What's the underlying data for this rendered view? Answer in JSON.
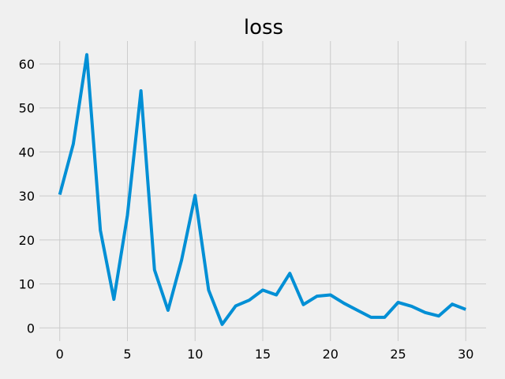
{
  "chart_data": {
    "type": "line",
    "title": "loss",
    "xlabel": "",
    "ylabel": "",
    "xlim": [
      -1.5,
      31.5
    ],
    "ylim": [
      -3.0,
      65.2
    ],
    "xticks": [
      0,
      5,
      10,
      15,
      20,
      25,
      30
    ],
    "yticks": [
      0,
      10,
      20,
      30,
      40,
      50,
      60
    ],
    "grid": true,
    "legend": "none",
    "series": [
      {
        "name": "loss",
        "color": "#008fd5",
        "x": [
          0,
          1,
          2,
          3,
          4,
          5,
          6,
          7,
          8,
          9,
          10,
          11,
          12,
          13,
          14,
          15,
          16,
          17,
          18,
          19,
          20,
          21,
          22,
          23,
          24,
          25,
          26,
          27,
          28,
          29,
          30
        ],
        "y": [
          30.3,
          41.8,
          62.1,
          22.2,
          6.5,
          25.6,
          53.9,
          13.2,
          4.0,
          15.4,
          30.1,
          8.6,
          0.8,
          5.0,
          6.3,
          8.6,
          7.5,
          12.4,
          5.3,
          7.2,
          7.5,
          5.6,
          4.0,
          2.4,
          2.4,
          5.8,
          4.9,
          3.5,
          2.7,
          5.4,
          4.2
        ]
      }
    ]
  }
}
